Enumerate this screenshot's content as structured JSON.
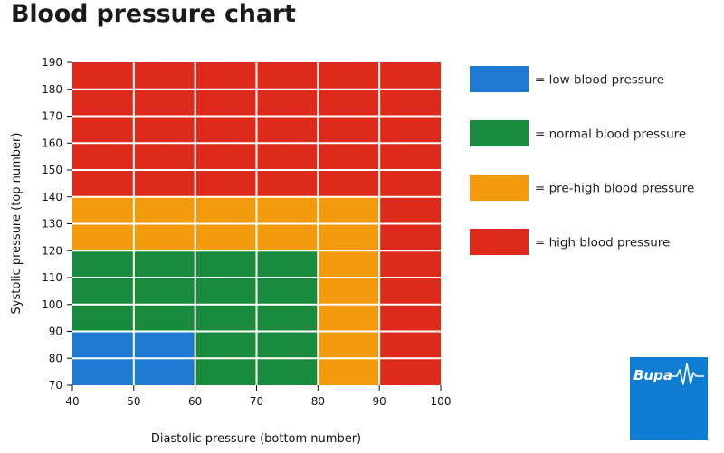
{
  "chart_data": {
    "type": "heatmap",
    "title": "Blood pressure chart",
    "xlabel": "Diastolic pressure (bottom number)",
    "ylabel": "Systolic pressure (top number)",
    "xlim": [
      40,
      100
    ],
    "ylim": [
      70,
      190
    ],
    "x_ticks": [
      40,
      50,
      60,
      70,
      80,
      90,
      100
    ],
    "y_ticks": [
      70,
      80,
      90,
      100,
      110,
      120,
      130,
      140,
      150,
      160,
      170,
      180,
      190
    ],
    "grid": true,
    "legend_position": "right",
    "categories": [
      {
        "key": "low",
        "label": "= low blood pressure",
        "color": "#1f7ad4"
      },
      {
        "key": "normal",
        "label": "= normal blood pressure",
        "color": "#1a8a3c"
      },
      {
        "key": "prehigh",
        "label": "= pre-high blood pressure",
        "color": "#f39a0e"
      },
      {
        "key": "high",
        "label": "= high blood pressure",
        "color": "#de2a1b"
      }
    ],
    "regions": [
      {
        "category": "high",
        "x": [
          40,
          100
        ],
        "y": [
          70,
          190
        ]
      },
      {
        "category": "prehigh",
        "x": [
          40,
          90
        ],
        "y": [
          70,
          140
        ]
      },
      {
        "category": "normal",
        "x": [
          40,
          80
        ],
        "y": [
          70,
          120
        ]
      },
      {
        "category": "low",
        "x": [
          40,
          60
        ],
        "y": [
          70,
          90
        ]
      },
      {
        "category": "normal",
        "x": [
          60,
          80
        ],
        "y": [
          70,
          90
        ]
      }
    ]
  },
  "logo": {
    "text": "Bupa",
    "background": "#0f7dd2"
  }
}
